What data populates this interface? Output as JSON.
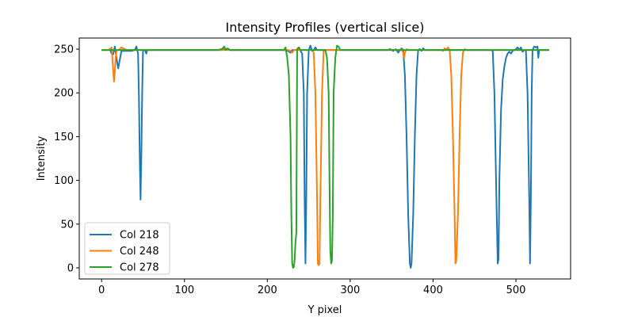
{
  "chart_data": {
    "type": "line",
    "title": "Intensity Profiles (vertical slice)",
    "xlabel": "Y pixel",
    "ylabel": "Intensity",
    "xlim": [
      -26.95,
      565.95
    ],
    "ylim": [
      -12.7,
      262.7
    ],
    "xticks": [
      0,
      100,
      200,
      300,
      400,
      500
    ],
    "yticks": [
      0,
      50,
      100,
      150,
      200,
      250
    ],
    "grid": false,
    "legend": "lower-left",
    "series": [
      {
        "name": "Col 218",
        "color": "#1f77b4",
        "points": [
          [
            0,
            249
          ],
          [
            8,
            249
          ],
          [
            10,
            250
          ],
          [
            12,
            245
          ],
          [
            14,
            244
          ],
          [
            16,
            253
          ],
          [
            18,
            240
          ],
          [
            20,
            228
          ],
          [
            22,
            238
          ],
          [
            24,
            248
          ],
          [
            30,
            248
          ],
          [
            36,
            248
          ],
          [
            40,
            249
          ],
          [
            42,
            253
          ],
          [
            44,
            245
          ],
          [
            45,
            200
          ],
          [
            46,
            130
          ],
          [
            47,
            78
          ],
          [
            48,
            130
          ],
          [
            49,
            200
          ],
          [
            50,
            249
          ],
          [
            52,
            249
          ],
          [
            54,
            245
          ],
          [
            55,
            249
          ],
          [
            60,
            249
          ],
          [
            145,
            249
          ],
          [
            148,
            250
          ],
          [
            152,
            250
          ],
          [
            155,
            249
          ],
          [
            220,
            249
          ],
          [
            225,
            248
          ],
          [
            228,
            246
          ],
          [
            230,
            249
          ],
          [
            235,
            249
          ],
          [
            238,
            252
          ],
          [
            240,
            248
          ],
          [
            242,
            245
          ],
          [
            244,
            200
          ],
          [
            245,
            80
          ],
          [
            246,
            5
          ],
          [
            247,
            80
          ],
          [
            248,
            200
          ],
          [
            250,
            249
          ],
          [
            252,
            254
          ],
          [
            254,
            248
          ],
          [
            256,
            249
          ],
          [
            258,
            252
          ],
          [
            260,
            249
          ],
          [
            345,
            249
          ],
          [
            348,
            250
          ],
          [
            352,
            248
          ],
          [
            355,
            250
          ],
          [
            358,
            246
          ],
          [
            360,
            249
          ],
          [
            362,
            251
          ],
          [
            364,
            249
          ],
          [
            366,
            220
          ],
          [
            368,
            150
          ],
          [
            370,
            60
          ],
          [
            372,
            5
          ],
          [
            373,
            0
          ],
          [
            374,
            5
          ],
          [
            376,
            60
          ],
          [
            378,
            150
          ],
          [
            380,
            220
          ],
          [
            382,
            249
          ],
          [
            384,
            250
          ],
          [
            386,
            248
          ],
          [
            388,
            251
          ],
          [
            390,
            249
          ],
          [
            470,
            249
          ],
          [
            472,
            248
          ],
          [
            474,
            200
          ],
          [
            476,
            100
          ],
          [
            478,
            5
          ],
          [
            479,
            10
          ],
          [
            480,
            100
          ],
          [
            482,
            180
          ],
          [
            484,
            215
          ],
          [
            486,
            230
          ],
          [
            488,
            240
          ],
          [
            490,
            245
          ],
          [
            492,
            247
          ],
          [
            494,
            245
          ],
          [
            496,
            248
          ],
          [
            498,
            249
          ],
          [
            500,
            250
          ],
          [
            502,
            252
          ],
          [
            504,
            249
          ],
          [
            506,
            252
          ],
          [
            508,
            247
          ],
          [
            510,
            249
          ],
          [
            512,
            249
          ],
          [
            514,
            200
          ],
          [
            516,
            80
          ],
          [
            517,
            5
          ],
          [
            518,
            80
          ],
          [
            519,
            200
          ],
          [
            520,
            249
          ],
          [
            522,
            253
          ],
          [
            524,
            252
          ],
          [
            526,
            253
          ],
          [
            527,
            240
          ],
          [
            528,
            249
          ],
          [
            530,
            249
          ],
          [
            540,
            249
          ]
        ]
      },
      {
        "name": "Col 248",
        "color": "#ff7f0e",
        "points": [
          [
            0,
            249
          ],
          [
            8,
            249
          ],
          [
            10,
            250
          ],
          [
            12,
            252
          ],
          [
            13,
            240
          ],
          [
            14,
            225
          ],
          [
            15,
            213
          ],
          [
            16,
            225
          ],
          [
            17,
            240
          ],
          [
            18,
            248
          ],
          [
            20,
            249
          ],
          [
            22,
            250
          ],
          [
            24,
            252
          ],
          [
            26,
            251
          ],
          [
            28,
            250
          ],
          [
            30,
            249
          ],
          [
            145,
            249
          ],
          [
            220,
            249
          ],
          [
            225,
            249
          ],
          [
            228,
            248
          ],
          [
            230,
            246
          ],
          [
            232,
            249
          ],
          [
            235,
            249
          ],
          [
            240,
            249
          ],
          [
            245,
            249
          ],
          [
            250,
            249
          ],
          [
            255,
            249
          ],
          [
            256,
            245
          ],
          [
            258,
            200
          ],
          [
            260,
            80
          ],
          [
            261,
            5
          ],
          [
            262,
            3
          ],
          [
            263,
            5
          ],
          [
            264,
            80
          ],
          [
            266,
            200
          ],
          [
            268,
            249
          ],
          [
            270,
            249
          ],
          [
            360,
            249
          ],
          [
            362,
            250
          ],
          [
            364,
            246
          ],
          [
            365,
            240
          ],
          [
            366,
            246
          ],
          [
            368,
            250
          ],
          [
            370,
            249
          ],
          [
            380,
            249
          ],
          [
            410,
            249
          ],
          [
            412,
            248
          ],
          [
            414,
            251
          ],
          [
            416,
            249
          ],
          [
            418,
            252
          ],
          [
            420,
            249
          ],
          [
            422,
            220
          ],
          [
            424,
            150
          ],
          [
            426,
            60
          ],
          [
            427,
            5
          ],
          [
            428,
            8
          ],
          [
            430,
            60
          ],
          [
            432,
            150
          ],
          [
            434,
            220
          ],
          [
            436,
            246
          ],
          [
            438,
            250
          ],
          [
            440,
            249
          ],
          [
            540,
            249
          ]
        ]
      },
      {
        "name": "Col 278",
        "color": "#2ca02c",
        "points": [
          [
            0,
            249
          ],
          [
            50,
            249
          ],
          [
            100,
            249
          ],
          [
            140,
            249
          ],
          [
            145,
            250
          ],
          [
            148,
            253
          ],
          [
            150,
            249
          ],
          [
            152,
            251
          ],
          [
            155,
            249
          ],
          [
            220,
            249
          ],
          [
            222,
            252
          ],
          [
            224,
            240
          ],
          [
            226,
            220
          ],
          [
            228,
            150
          ],
          [
            229,
            60
          ],
          [
            230,
            5
          ],
          [
            231,
            0
          ],
          [
            232,
            1
          ],
          [
            233,
            10
          ],
          [
            234,
            30
          ],
          [
            235,
            40
          ],
          [
            236,
            250
          ],
          [
            238,
            252
          ],
          [
            240,
            249
          ],
          [
            250,
            249
          ],
          [
            260,
            249
          ],
          [
            270,
            249
          ],
          [
            272,
            240
          ],
          [
            274,
            200
          ],
          [
            275,
            100
          ],
          [
            276,
            20
          ],
          [
            277,
            5
          ],
          [
            278,
            8
          ],
          [
            279,
            60
          ],
          [
            280,
            200
          ],
          [
            282,
            240
          ],
          [
            284,
            254
          ],
          [
            286,
            253
          ],
          [
            288,
            249
          ],
          [
            300,
            249
          ],
          [
            400,
            249
          ],
          [
            500,
            249
          ],
          [
            540,
            249
          ]
        ]
      }
    ]
  }
}
